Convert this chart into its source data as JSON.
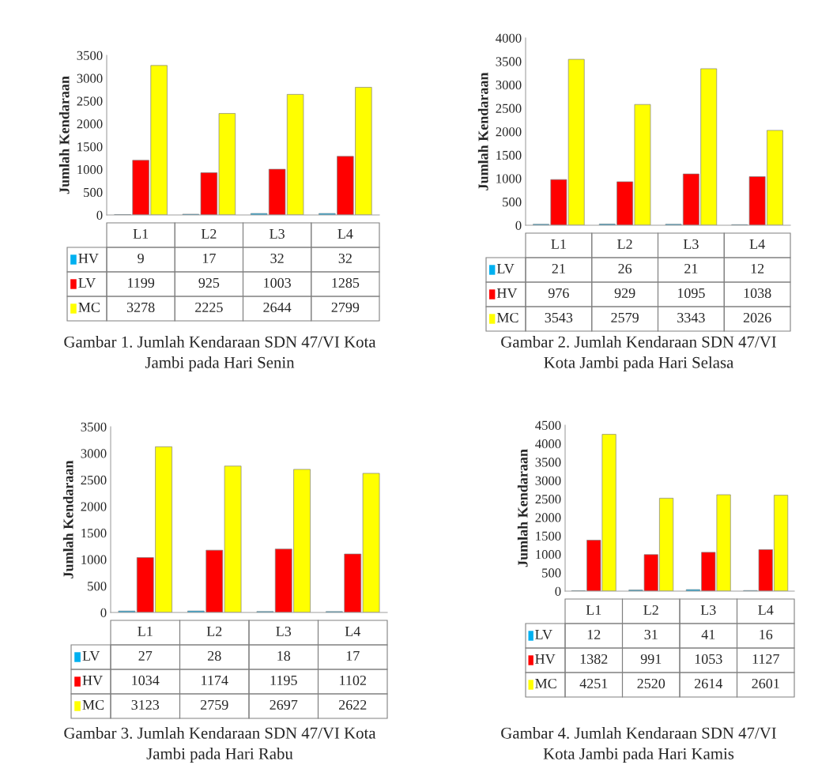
{
  "chart_data": [
    {
      "type": "bar",
      "categories": [
        "L1",
        "L2",
        "L3",
        "L4"
      ],
      "ylabel": "Jumlah Kendaraan",
      "ylim": [
        0,
        3500
      ],
      "yticks": [
        0,
        500,
        1000,
        1500,
        2000,
        2500,
        3000,
        3500
      ],
      "data_labels": true,
      "legend": "bottom",
      "tick_labels": "y",
      "series": [
        {
          "name": "HV",
          "color": "#00b0f0",
          "values": [
            9,
            17,
            32,
            32
          ]
        },
        {
          "name": "LV",
          "color": "#ff0000",
          "values": [
            1199,
            925,
            1003,
            1285
          ]
        },
        {
          "name": "MC",
          "color": "#ffff00",
          "values": [
            3278,
            2225,
            2644,
            2799
          ]
        }
      ],
      "annotations": [
        "Gambar 1. Jumlah Kendaraan SDN 47/VI Kota\nJambi pada Hari Senin"
      ]
    },
    {
      "type": "bar",
      "categories": [
        "L1",
        "L2",
        "L3",
        "L4"
      ],
      "ylabel": "Jumlah Kendaraan",
      "ylim": [
        0,
        4000
      ],
      "yticks": [
        0,
        500,
        1000,
        1500,
        2000,
        2500,
        3000,
        3500,
        4000
      ],
      "data_labels": true,
      "legend": "bottom",
      "tick_labels": "y",
      "series": [
        {
          "name": "LV",
          "color": "#00b0f0",
          "values": [
            21,
            26,
            21,
            12
          ]
        },
        {
          "name": "HV",
          "color": "#ff0000",
          "values": [
            976,
            929,
            1095,
            1038
          ]
        },
        {
          "name": "MC",
          "color": "#ffff00",
          "values": [
            3543,
            2579,
            3343,
            2026
          ]
        }
      ],
      "annotations": [
        "Gambar 2. Jumlah Kendaraan SDN 47/VI\nKota Jambi pada Hari Selasa"
      ]
    },
    {
      "type": "bar",
      "categories": [
        "L1",
        "L2",
        "L3",
        "L4"
      ],
      "ylabel": "Jumlah Kendaraan",
      "ylim": [
        0,
        3500
      ],
      "yticks": [
        0,
        500,
        1000,
        1500,
        2000,
        2500,
        3000,
        3500
      ],
      "data_labels": true,
      "legend": "bottom",
      "tick_labels": "y",
      "series": [
        {
          "name": "LV",
          "color": "#00b0f0",
          "values": [
            27,
            28,
            18,
            17
          ]
        },
        {
          "name": "HV",
          "color": "#ff0000",
          "values": [
            1034,
            1174,
            1195,
            1102
          ]
        },
        {
          "name": "MC",
          "color": "#ffff00",
          "values": [
            3123,
            2759,
            2697,
            2622
          ]
        }
      ],
      "annotations": [
        "Gambar 3. Jumlah Kendaraan SDN 47/VI Kota\nJambi pada Hari Rabu"
      ]
    },
    {
      "type": "bar",
      "categories": [
        "L1",
        "L2",
        "L3",
        "L4"
      ],
      "ylabel": "Jumlah Kendaraan",
      "ylim": [
        0,
        4500
      ],
      "yticks": [
        0,
        500,
        1000,
        1500,
        2000,
        2500,
        3000,
        3500,
        4000,
        4500
      ],
      "data_labels": true,
      "legend": "bottom",
      "tick_labels": "y",
      "series": [
        {
          "name": "LV",
          "color": "#00b0f0",
          "values": [
            12,
            31,
            41,
            16
          ]
        },
        {
          "name": "HV",
          "color": "#ff0000",
          "values": [
            1382,
            991,
            1053,
            1127
          ]
        },
        {
          "name": "MC",
          "color": "#ffff00",
          "values": [
            4251,
            2520,
            2614,
            2601
          ]
        }
      ],
      "annotations": [
        "Gambar 4. Jumlah Kendaraan SDN 47/VI\nKota Jambi pada Hari Kamis"
      ]
    }
  ]
}
